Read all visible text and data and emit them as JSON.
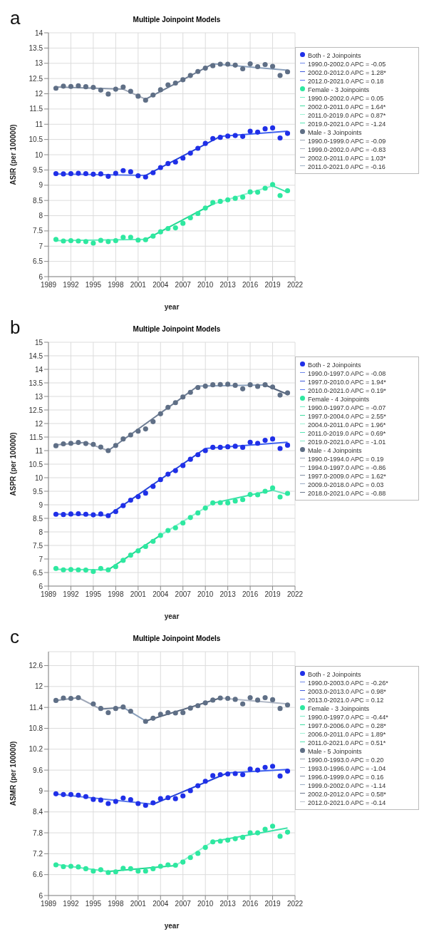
{
  "chart_data": [
    {
      "type": "scatter",
      "title": "Multiple Joinpoint Models",
      "xlabel": "year",
      "ylabel": "ASIR (per 100000)",
      "annotations": [
        "a"
      ],
      "grid": true,
      "legend": "right",
      "xlim": [
        1989,
        2022
      ],
      "xticks": [
        1989,
        1992,
        1995,
        1998,
        2001,
        2004,
        2007,
        2010,
        2013,
        2016,
        2019,
        2022
      ],
      "ylim": [
        6,
        14
      ],
      "yticks": [
        6,
        6.5,
        7,
        7.5,
        8,
        8.5,
        9,
        9.5,
        10,
        10.5,
        11,
        11.5,
        12,
        12.5,
        13,
        13.5,
        14
      ],
      "x": [
        1990,
        1991,
        1992,
        1993,
        1994,
        1995,
        1996,
        1997,
        1998,
        1999,
        2000,
        2001,
        2002,
        2003,
        2004,
        2005,
        2006,
        2007,
        2008,
        2009,
        2010,
        2011,
        2012,
        2013,
        2014,
        2015,
        2016,
        2017,
        2018,
        2019,
        2020,
        2021
      ],
      "series": [
        {
          "type": "scatter",
          "marker": "circle",
          "name": "Both - 2 Joinpoints",
          "color": "#1f2fe8",
          "values": [
            9.38,
            9.37,
            9.38,
            9.39,
            9.38,
            9.36,
            9.37,
            9.29,
            9.39,
            9.48,
            9.44,
            9.31,
            9.27,
            9.41,
            9.58,
            9.71,
            9.76,
            9.89,
            10.05,
            10.21,
            10.37,
            10.53,
            10.57,
            10.61,
            10.63,
            10.6,
            10.77,
            10.74,
            10.85,
            10.88,
            10.55,
            10.7
          ]
        },
        {
          "type": "line",
          "name": "1990.0-2002.0 APC = -0.05",
          "color": "#5a78e8",
          "x": [
            1990,
            2002
          ],
          "values": [
            9.37,
            9.32
          ]
        },
        {
          "type": "line",
          "name": "2002.0-2012.0 APC = 1.28*",
          "color": "#2442d8",
          "x": [
            2002,
            2012
          ],
          "values": [
            9.32,
            10.6
          ]
        },
        {
          "type": "line",
          "name": "2012.0-2021.0 APC = 0.18",
          "color": "#3f62f0",
          "x": [
            2012,
            2021
          ],
          "values": [
            10.6,
            10.77
          ]
        },
        {
          "type": "scatter",
          "marker": "circle",
          "name": "Female - 3 Joinpoints",
          "color": "#2ee8a0",
          "values": [
            7.22,
            7.17,
            7.18,
            7.17,
            7.15,
            7.1,
            7.19,
            7.15,
            7.18,
            7.29,
            7.29,
            7.2,
            7.21,
            7.33,
            7.47,
            7.58,
            7.6,
            7.75,
            7.93,
            8.07,
            8.25,
            8.43,
            8.47,
            8.52,
            8.57,
            8.61,
            8.78,
            8.77,
            8.9,
            9.02,
            8.66,
            8.82
          ]
        },
        {
          "type": "line",
          "name": "1990.0-2002.0 APC = 0.05",
          "color": "#60ecbc",
          "x": [
            1990,
            2002
          ],
          "values": [
            7.18,
            7.22
          ]
        },
        {
          "type": "line",
          "name": "2002.0-2011.0 APC = 1.64*",
          "color": "#22d892",
          "x": [
            2002,
            2011
          ],
          "values": [
            7.22,
            8.38
          ]
        },
        {
          "type": "line",
          "name": "2011.0-2019.0 APC = 0.87*",
          "color": "#8ff0cf",
          "x": [
            2011,
            2019
          ],
          "values": [
            8.38,
            8.98
          ]
        },
        {
          "type": "line",
          "name": "2019.0-2021.0 APC = -1.24",
          "color": "#3ce2a8",
          "x": [
            2019,
            2021
          ],
          "values": [
            8.98,
            8.77
          ]
        },
        {
          "type": "scatter",
          "marker": "circle",
          "name": "Male - 3 Joinpoints",
          "color": "#5f6f86",
          "values": [
            12.18,
            12.25,
            12.24,
            12.26,
            12.23,
            12.21,
            12.12,
            11.99,
            12.15,
            12.22,
            12.08,
            11.92,
            11.79,
            11.96,
            12.13,
            12.29,
            12.35,
            12.46,
            12.6,
            12.73,
            12.84,
            12.92,
            12.97,
            12.97,
            12.94,
            12.82,
            12.98,
            12.89,
            12.96,
            12.9,
            12.6,
            12.72
          ]
        },
        {
          "type": "line",
          "name": "1990.0-1999.0 APC = -0.09",
          "color": "#8895a8",
          "x": [
            1990,
            1999
          ],
          "values": [
            12.22,
            12.15
          ]
        },
        {
          "type": "line",
          "name": "1999.0-2002.0 APC = -0.83",
          "color": "#a0a8b8",
          "x": [
            1999,
            2002
          ],
          "values": [
            12.15,
            11.82
          ]
        },
        {
          "type": "line",
          "name": "2002.0-2011.0 APC = 1.03*",
          "color": "#6e7d94",
          "x": [
            2002,
            2011
          ],
          "values": [
            11.82,
            12.98
          ]
        },
        {
          "type": "line",
          "name": "2011.0-2021.0 APC = -0.16",
          "color": "#8aa0bc",
          "x": [
            2011,
            2021
          ],
          "values": [
            12.98,
            12.77
          ]
        }
      ]
    },
    {
      "type": "scatter",
      "title": "Multiple Joinpoint Models",
      "xlabel": "year",
      "ylabel": "ASPR (per 100000)",
      "annotations": [
        "b"
      ],
      "grid": true,
      "legend": "right",
      "xlim": [
        1989,
        2022
      ],
      "xticks": [
        1989,
        1992,
        1995,
        1998,
        2001,
        2004,
        2007,
        2010,
        2013,
        2016,
        2019,
        2022
      ],
      "ylim": [
        6,
        15
      ],
      "yticks": [
        6,
        6.5,
        7,
        7.5,
        8,
        8.5,
        9,
        9.5,
        10,
        10.5,
        11,
        11.5,
        12,
        12.5,
        13,
        13.5,
        14,
        14.5,
        15
      ],
      "x": [
        1990,
        1991,
        1992,
        1993,
        1994,
        1995,
        1996,
        1997,
        1998,
        1999,
        2000,
        2001,
        2002,
        2003,
        2004,
        2005,
        2006,
        2007,
        2008,
        2009,
        2010,
        2011,
        2012,
        2013,
        2014,
        2015,
        2016,
        2017,
        2018,
        2019,
        2020,
        2021
      ],
      "series": [
        {
          "type": "scatter",
          "marker": "circle",
          "name": "Both - 2 Joinpoints",
          "color": "#1f2fe8",
          "values": [
            8.65,
            8.64,
            8.66,
            8.67,
            8.65,
            8.63,
            8.66,
            8.6,
            8.75,
            8.97,
            9.17,
            9.3,
            9.43,
            9.68,
            9.93,
            10.13,
            10.26,
            10.45,
            10.68,
            10.85,
            11.0,
            11.12,
            11.12,
            11.14,
            11.16,
            11.12,
            11.31,
            11.27,
            11.38,
            11.43,
            11.08,
            11.2
          ]
        },
        {
          "type": "line",
          "name": "1990.0-1997.0 APC = -0.08",
          "color": "#5a78e8",
          "x": [
            1990,
            1997
          ],
          "values": [
            8.66,
            8.61
          ]
        },
        {
          "type": "line",
          "name": "1997.0-2010.0 APC = 1.94*",
          "color": "#2442d8",
          "x": [
            1997,
            2010
          ],
          "values": [
            8.61,
            11.08
          ]
        },
        {
          "type": "line",
          "name": "2010.0-2021.0 APC = 0.19*",
          "color": "#3f62f0",
          "x": [
            2010,
            2021
          ],
          "values": [
            11.08,
            11.31
          ]
        },
        {
          "type": "scatter",
          "marker": "circle",
          "name": "Female - 4 Joinpoints",
          "color": "#2ee8a0",
          "values": [
            6.65,
            6.6,
            6.61,
            6.6,
            6.59,
            6.54,
            6.65,
            6.6,
            6.72,
            6.95,
            7.14,
            7.3,
            7.46,
            7.65,
            7.87,
            8.05,
            8.15,
            8.33,
            8.53,
            8.7,
            8.88,
            9.07,
            9.08,
            9.07,
            9.14,
            9.19,
            9.38,
            9.37,
            9.5,
            9.62,
            9.29,
            9.42
          ]
        },
        {
          "type": "line",
          "name": "1990.0-1997.0 APC = -0.07",
          "color": "#60ecbc",
          "x": [
            1990,
            1997
          ],
          "values": [
            6.62,
            6.6
          ]
        },
        {
          "type": "line",
          "name": "1997.0-2004.0 APC = 2.55*",
          "color": "#22d892",
          "x": [
            1997,
            2004
          ],
          "values": [
            6.6,
            7.88
          ]
        },
        {
          "type": "line",
          "name": "2004.0-2011.0 APC = 1.96*",
          "color": "#8ff0cf",
          "x": [
            2004,
            2011
          ],
          "values": [
            7.88,
            9.06
          ]
        },
        {
          "type": "line",
          "name": "2011.0-2019.0 APC = 0.69*",
          "color": "#3ce2a8",
          "x": [
            2011,
            2019
          ],
          "values": [
            9.06,
            9.54
          ]
        },
        {
          "type": "line",
          "name": "2019.0-2021.0 APC = -1.01",
          "color": "#70e8c0",
          "x": [
            2019,
            2021
          ],
          "values": [
            9.54,
            9.38
          ]
        },
        {
          "type": "scatter",
          "marker": "circle",
          "name": "Male - 4 Joinpoints",
          "color": "#5f6f86",
          "values": [
            11.18,
            11.25,
            11.27,
            11.3,
            11.26,
            11.23,
            11.13,
            11.0,
            11.19,
            11.43,
            11.58,
            11.72,
            11.8,
            12.07,
            12.36,
            12.6,
            12.77,
            12.98,
            13.15,
            13.33,
            13.38,
            13.43,
            13.44,
            13.45,
            13.41,
            13.28,
            13.43,
            13.37,
            13.43,
            13.35,
            13.05,
            13.13
          ]
        },
        {
          "type": "line",
          "name": "1990.0-1994.0 APC = 0.19",
          "color": "#8895a8",
          "x": [
            1990,
            1994
          ],
          "values": [
            11.21,
            11.3
          ]
        },
        {
          "type": "line",
          "name": "1994.0-1997.0 APC = -0.86",
          "color": "#a0a8b8",
          "x": [
            1994,
            1997
          ],
          "values": [
            11.3,
            11.0
          ]
        },
        {
          "type": "line",
          "name": "1997.0-2009.0 APC = 1.62*",
          "color": "#6e7d94",
          "x": [
            1997,
            2009
          ],
          "values": [
            11.0,
            13.38
          ]
        },
        {
          "type": "line",
          "name": "2009.0-2018.0 APC = 0.03",
          "color": "#8aa0bc",
          "x": [
            2009,
            2018
          ],
          "values": [
            13.38,
            13.42
          ]
        },
        {
          "type": "line",
          "name": "2018.0-2021.0 APC = -0.88",
          "color": "#56657c",
          "x": [
            2018,
            2021
          ],
          "values": [
            13.42,
            13.08
          ]
        }
      ]
    },
    {
      "type": "scatter",
      "title": "Multiple Joinpoint Models",
      "xlabel": "year",
      "ylabel": "ASMR (per 100000)",
      "annotations": [
        "c"
      ],
      "grid": true,
      "legend": "right",
      "xlim": [
        1989,
        2022
      ],
      "xticks": [
        1989,
        1992,
        1995,
        1998,
        2001,
        2004,
        2007,
        2010,
        2013,
        2016,
        2019,
        2022
      ],
      "ylim": [
        6,
        13
      ],
      "yticks": [
        6,
        6.6,
        7.2,
        7.8,
        8.4,
        9,
        9.6,
        10.2,
        10.8,
        11.4,
        12,
        12.6
      ],
      "x": [
        1990,
        1991,
        1992,
        1993,
        1994,
        1995,
        1996,
        1997,
        1998,
        1999,
        2000,
        2001,
        2002,
        2003,
        2004,
        2005,
        2006,
        2007,
        2008,
        2009,
        2010,
        2011,
        2012,
        2013,
        2014,
        2015,
        2016,
        2017,
        2018,
        2019,
        2020,
        2021
      ],
      "series": [
        {
          "type": "scatter",
          "marker": "circle",
          "name": "Both - 2 Joinpoints",
          "color": "#1f2fe8",
          "values": [
            8.92,
            8.9,
            8.9,
            8.88,
            8.84,
            8.76,
            8.74,
            8.64,
            8.7,
            8.8,
            8.75,
            8.64,
            8.59,
            8.66,
            8.78,
            8.81,
            8.78,
            8.86,
            9.01,
            9.15,
            9.28,
            9.44,
            9.47,
            9.49,
            9.5,
            9.47,
            9.63,
            9.6,
            9.68,
            9.71,
            9.43,
            9.57
          ]
        },
        {
          "type": "line",
          "name": "1990.0-2003.0 APC = -0.26*",
          "color": "#5a78e8",
          "x": [
            1990,
            2003
          ],
          "values": [
            8.91,
            8.62
          ]
        },
        {
          "type": "line",
          "name": "2003.0-2013.0 APC = 0.98*",
          "color": "#2442d8",
          "x": [
            2003,
            2013
          ],
          "values": [
            8.62,
            9.52
          ]
        },
        {
          "type": "line",
          "name": "2013.0-2021.0 APC = 0.12",
          "color": "#3f62f0",
          "x": [
            2013,
            2021
          ],
          "values": [
            9.52,
            9.62
          ]
        },
        {
          "type": "scatter",
          "marker": "circle",
          "name": "Female - 3 Joinpoints",
          "color": "#2ee8a0",
          "values": [
            6.88,
            6.83,
            6.84,
            6.82,
            6.77,
            6.7,
            6.74,
            6.66,
            6.68,
            6.78,
            6.77,
            6.7,
            6.7,
            6.77,
            6.84,
            6.88,
            6.87,
            6.96,
            7.09,
            7.21,
            7.38,
            7.54,
            7.56,
            7.59,
            7.63,
            7.67,
            7.8,
            7.8,
            7.9,
            7.99,
            7.7,
            7.82
          ]
        },
        {
          "type": "line",
          "name": "1990.0-1997.0 APC = -0.44*",
          "color": "#60ecbc",
          "x": [
            1990,
            1997
          ],
          "values": [
            6.89,
            6.69
          ]
        },
        {
          "type": "line",
          "name": "1997.0-2006.0 APC = 0.28*",
          "color": "#22d892",
          "x": [
            1997,
            2006
          ],
          "values": [
            6.69,
            6.86
          ]
        },
        {
          "type": "line",
          "name": "2006.0-2011.0 APC = 1.89*",
          "color": "#8ff0cf",
          "x": [
            2006,
            2011
          ],
          "values": [
            6.86,
            7.55
          ]
        },
        {
          "type": "line",
          "name": "2011.0-2021.0 APC = 0.51*",
          "color": "#3ce2a8",
          "x": [
            2011,
            2021
          ],
          "values": [
            7.55,
            7.94
          ]
        },
        {
          "type": "scatter",
          "marker": "circle",
          "name": "Male - 5 Joinpoints",
          "color": "#5f6f86",
          "values": [
            11.6,
            11.67,
            11.66,
            11.68,
            null,
            11.5,
            11.37,
            11.25,
            11.37,
            11.41,
            11.29,
            null,
            11.0,
            11.09,
            11.2,
            11.25,
            11.24,
            11.25,
            11.38,
            11.45,
            11.53,
            11.61,
            11.67,
            11.66,
            11.63,
            11.5,
            11.68,
            11.61,
            11.68,
            11.62,
            11.37,
            11.47
          ]
        },
        {
          "type": "line",
          "name": "1990.0-1993.0 APC = 0.20",
          "color": "#8895a8",
          "x": [
            1990,
            1993
          ],
          "values": [
            11.6,
            11.68
          ]
        },
        {
          "type": "line",
          "name": "1993.0-1996.0 APC = -1.04",
          "color": "#a0a8b8",
          "x": [
            1993,
            1996
          ],
          "values": [
            11.68,
            11.35
          ]
        },
        {
          "type": "line",
          "name": "1996.0-1999.0 APC = 0.16",
          "color": "#6e7d94",
          "x": [
            1996,
            1999
          ],
          "values": [
            11.35,
            11.4
          ]
        },
        {
          "type": "line",
          "name": "1999.0-2002.0 APC = -1.14",
          "color": "#8aa0bc",
          "x": [
            1999,
            2002
          ],
          "values": [
            11.4,
            11.01
          ]
        },
        {
          "type": "line",
          "name": "2002.0-2012.0 APC = 0.58*",
          "color": "#56657c",
          "x": [
            2002,
            2012
          ],
          "values": [
            11.01,
            11.67
          ]
        },
        {
          "type": "line",
          "name": "2012.0-2021.0 APC = -0.14",
          "color": "#b0b8c6",
          "x": [
            2012,
            2021
          ],
          "values": [
            11.67,
            11.5
          ]
        }
      ]
    }
  ]
}
